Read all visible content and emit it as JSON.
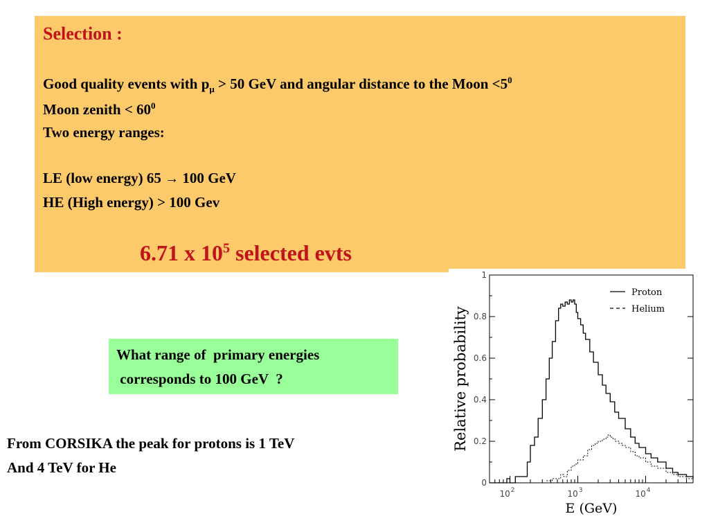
{
  "selection": {
    "title": "Selection :",
    "line1": {
      "a": "Good quality events with p",
      "mu": "μ",
      "b": " > 50 GeV and angular distance to the Moon <5",
      "sup": "0"
    },
    "line2": {
      "a": "Moon zenith < 60",
      "sup": "0"
    },
    "line3": "Two energy ranges:",
    "le": {
      "a": "LE (low energy)  65 ",
      "arrow": "→",
      "b": " 100 GeV"
    },
    "he": "HE (High energy) > 100 Gev",
    "evts": {
      "a": "6.71 x 10",
      "sup": "5",
      "b": " selected evts"
    }
  },
  "question": {
    "line1": "What range of  primary energies",
    "line2": " corresponds to 100 GeV  ?"
  },
  "conclusion": {
    "line1": "From CORSIKA the peak for protons is 1 TeV",
    "line2": "And 4 TeV for He"
  },
  "colors": {
    "selection_bg": "#fcc96b",
    "red_text": "#c0141c",
    "question_bg": "#99ff99"
  },
  "chart_data": {
    "type": "line",
    "xlabel": "E (GeV)",
    "ylabel": "Relative probability",
    "x_scale": "log",
    "xlim": [
      50,
      50000
    ],
    "ylim": [
      0,
      1
    ],
    "x_ticks": [
      100,
      1000,
      10000
    ],
    "x_tick_labels": [
      {
        "base": "10",
        "exp": "2"
      },
      {
        "base": "10",
        "exp": "3"
      },
      {
        "base": "10",
        "exp": "4"
      }
    ],
    "y_ticks": [
      0,
      0.2,
      0.4,
      0.6,
      0.8,
      1
    ],
    "y_tick_labels": [
      "0",
      "0.2",
      "0.4",
      "0.6",
      "0.8",
      "1"
    ],
    "legend_position": "top-right",
    "series": [
      {
        "name": "Proton",
        "style": "solid",
        "x": [
          50,
          80,
          90,
          100,
          120,
          150,
          180,
          200,
          230,
          260,
          300,
          340,
          380,
          420,
          470,
          520,
          560,
          600,
          650,
          700,
          750,
          800,
          850,
          900,
          950,
          1000,
          1100,
          1200,
          1300,
          1500,
          1700,
          2000,
          2300,
          2600,
          3000,
          3500,
          4000,
          5000,
          6000,
          7000,
          8000,
          10000,
          12000,
          15000,
          20000,
          25000,
          30000,
          40000,
          50000
        ],
        "y": [
          0,
          0,
          0.02,
          0,
          0.03,
          0.03,
          0.1,
          0.18,
          0.22,
          0.31,
          0.4,
          0.5,
          0.6,
          0.68,
          0.78,
          0.84,
          0.86,
          0.85,
          0.87,
          0.86,
          0.88,
          0.87,
          0.88,
          0.86,
          0.82,
          0.79,
          0.76,
          0.72,
          0.69,
          0.63,
          0.58,
          0.52,
          0.47,
          0.43,
          0.39,
          0.34,
          0.31,
          0.26,
          0.22,
          0.19,
          0.17,
          0.14,
          0.12,
          0.1,
          0.07,
          0.05,
          0.04,
          0.03,
          0.02
        ]
      },
      {
        "name": "Helium",
        "style": "dashed",
        "x": [
          280,
          350,
          420,
          500,
          560,
          620,
          700,
          800,
          900,
          1000,
          1200,
          1400,
          1600,
          1800,
          2000,
          2300,
          2600,
          2800,
          3000,
          3300,
          3600,
          4000,
          4500,
          5000,
          6000,
          7000,
          8000,
          10000,
          12000,
          15000,
          20000,
          25000,
          30000,
          40000,
          50000
        ],
        "y": [
          0,
          0.01,
          0.02,
          0.02,
          0.04,
          0.03,
          0.06,
          0.08,
          0.09,
          0.11,
          0.13,
          0.16,
          0.18,
          0.19,
          0.2,
          0.21,
          0.22,
          0.23,
          0.22,
          0.21,
          0.2,
          0.19,
          0.18,
          0.17,
          0.15,
          0.13,
          0.12,
          0.1,
          0.08,
          0.07,
          0.05,
          0.04,
          0.03,
          0.02,
          0.01
        ]
      }
    ]
  }
}
